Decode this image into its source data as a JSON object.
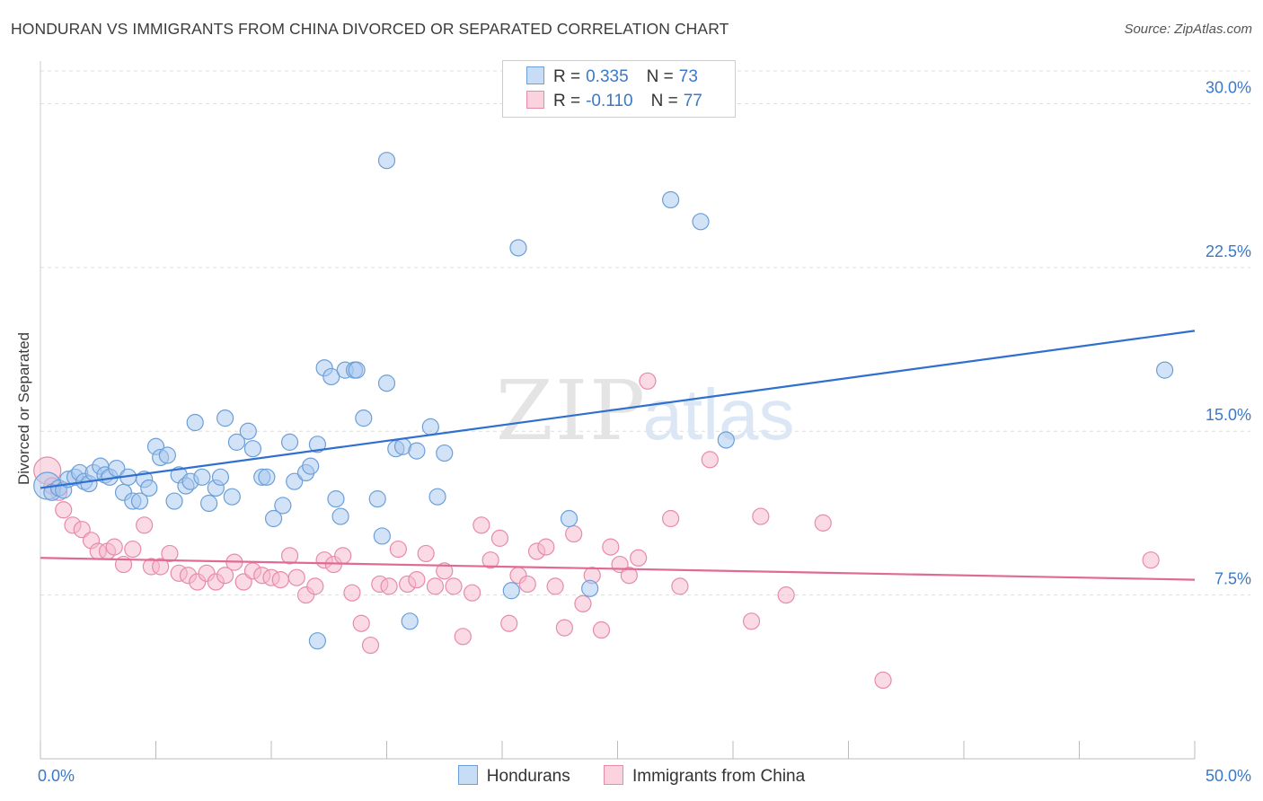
{
  "title": "HONDURAN VS IMMIGRANTS FROM CHINA DIVORCED OR SEPARATED CORRELATION CHART",
  "source": "Source: ZipAtlas.com",
  "watermark": {
    "zip": "ZIP",
    "atlas": "atlas"
  },
  "legend": {
    "r_label": "R =",
    "n_label": "N =",
    "rows": [
      {
        "r": "0.335",
        "n": "73"
      },
      {
        "r": "-0.110",
        "n": "77"
      }
    ]
  },
  "colors": {
    "blue_fill": "#a8c8f0",
    "blue_stroke": "#6a9fd8",
    "blue_line": "#2f6fd0",
    "pink_fill": "#f6b8cc",
    "pink_stroke": "#e88aa8",
    "pink_line": "#e06a95",
    "tick_label": "#3b78c7",
    "grid": "#dddddd"
  },
  "chart_data": {
    "type": "scatter",
    "title": "HONDURAN VS IMMIGRANTS FROM CHINA DIVORCED OR SEPARATED CORRELATION CHART",
    "xlabel": "",
    "ylabel": "Divorced or Separated",
    "xlim": [
      0,
      50
    ],
    "ylim": [
      0,
      31.5
    ],
    "x_tick_labels": [
      "0.0%",
      "50.0%"
    ],
    "y_ticks": [
      7.5,
      15.0,
      22.5,
      30.0
    ],
    "y_tick_labels": [
      "7.5%",
      "15.0%",
      "22.5%",
      "30.0%"
    ],
    "grid": "horizontal dashed",
    "legend_position": "top-center",
    "series": [
      {
        "name": "Hondurans",
        "r": 0.335,
        "n": 73,
        "trend": {
          "x": [
            0,
            50
          ],
          "y": [
            12.4,
            19.6
          ]
        },
        "points": [
          [
            0.3,
            12.5
          ],
          [
            0.5,
            12.2
          ],
          [
            0.8,
            12.4
          ],
          [
            1.0,
            12.3
          ],
          [
            1.2,
            12.8
          ],
          [
            1.5,
            12.9
          ],
          [
            1.7,
            13.1
          ],
          [
            1.9,
            12.7
          ],
          [
            2.1,
            12.6
          ],
          [
            2.3,
            13.1
          ],
          [
            2.6,
            13.4
          ],
          [
            2.8,
            13.0
          ],
          [
            3.0,
            12.9
          ],
          [
            3.3,
            13.3
          ],
          [
            3.6,
            12.2
          ],
          [
            3.8,
            12.9
          ],
          [
            4.0,
            11.8
          ],
          [
            4.3,
            11.8
          ],
          [
            4.5,
            12.8
          ],
          [
            4.7,
            12.4
          ],
          [
            5.0,
            14.3
          ],
          [
            5.2,
            13.8
          ],
          [
            5.5,
            13.9
          ],
          [
            5.8,
            11.8
          ],
          [
            6.0,
            13.0
          ],
          [
            6.3,
            12.5
          ],
          [
            6.5,
            12.7
          ],
          [
            6.7,
            15.4
          ],
          [
            7.0,
            12.9
          ],
          [
            7.3,
            11.7
          ],
          [
            7.6,
            12.4
          ],
          [
            7.8,
            12.9
          ],
          [
            8.0,
            15.6
          ],
          [
            8.3,
            12.0
          ],
          [
            8.5,
            14.5
          ],
          [
            9.0,
            15.0
          ],
          [
            9.2,
            14.2
          ],
          [
            9.6,
            12.9
          ],
          [
            9.8,
            12.9
          ],
          [
            10.1,
            11.0
          ],
          [
            10.5,
            11.6
          ],
          [
            10.8,
            14.5
          ],
          [
            11.0,
            12.7
          ],
          [
            11.5,
            13.1
          ],
          [
            11.7,
            13.4
          ],
          [
            12.0,
            14.4
          ],
          [
            12.3,
            17.9
          ],
          [
            12.6,
            17.5
          ],
          [
            12.8,
            11.9
          ],
          [
            13.0,
            11.1
          ],
          [
            13.2,
            17.8
          ],
          [
            13.6,
            17.8
          ],
          [
            13.7,
            17.8
          ],
          [
            14.0,
            15.6
          ],
          [
            14.6,
            11.9
          ],
          [
            14.8,
            10.2
          ],
          [
            15.0,
            17.2
          ],
          [
            15.4,
            14.2
          ],
          [
            15.7,
            14.3
          ],
          [
            16.0,
            6.3
          ],
          [
            16.3,
            14.1
          ],
          [
            16.9,
            15.2
          ],
          [
            17.2,
            12.0
          ],
          [
            17.5,
            14.0
          ],
          [
            15.0,
            27.4
          ],
          [
            20.4,
            7.7
          ],
          [
            20.7,
            23.4
          ],
          [
            22.9,
            11.0
          ],
          [
            23.8,
            7.8
          ],
          [
            27.3,
            25.6
          ],
          [
            28.6,
            24.6
          ],
          [
            29.7,
            14.6
          ],
          [
            12.0,
            5.4
          ],
          [
            48.7,
            17.8
          ]
        ]
      },
      {
        "name": "Immigrants from China",
        "r": -0.11,
        "n": 77,
        "trend": {
          "x": [
            0,
            50
          ],
          "y": [
            9.2,
            8.2
          ]
        },
        "points": [
          [
            0.3,
            13.2
          ],
          [
            0.5,
            12.5
          ],
          [
            0.8,
            12.2
          ],
          [
            1.0,
            11.4
          ],
          [
            1.4,
            10.7
          ],
          [
            1.8,
            10.5
          ],
          [
            2.2,
            10.0
          ],
          [
            2.5,
            9.5
          ],
          [
            2.9,
            9.5
          ],
          [
            3.2,
            9.7
          ],
          [
            3.6,
            8.9
          ],
          [
            4.0,
            9.6
          ],
          [
            4.5,
            10.7
          ],
          [
            4.8,
            8.8
          ],
          [
            5.2,
            8.8
          ],
          [
            5.6,
            9.4
          ],
          [
            6.0,
            8.5
          ],
          [
            6.4,
            8.4
          ],
          [
            6.8,
            8.1
          ],
          [
            7.2,
            8.5
          ],
          [
            7.6,
            8.1
          ],
          [
            8.0,
            8.4
          ],
          [
            8.4,
            9.0
          ],
          [
            8.8,
            8.1
          ],
          [
            9.2,
            8.6
          ],
          [
            9.6,
            8.4
          ],
          [
            10.0,
            8.3
          ],
          [
            10.4,
            8.2
          ],
          [
            10.8,
            9.3
          ],
          [
            11.1,
            8.3
          ],
          [
            11.5,
            7.5
          ],
          [
            11.9,
            7.9
          ],
          [
            12.3,
            9.1
          ],
          [
            12.7,
            8.9
          ],
          [
            13.1,
            9.3
          ],
          [
            13.5,
            7.6
          ],
          [
            13.9,
            6.2
          ],
          [
            14.3,
            5.2
          ],
          [
            14.7,
            8.0
          ],
          [
            15.1,
            7.9
          ],
          [
            15.5,
            9.6
          ],
          [
            15.9,
            8.0
          ],
          [
            16.3,
            8.2
          ],
          [
            16.7,
            9.4
          ],
          [
            17.1,
            7.9
          ],
          [
            17.5,
            8.6
          ],
          [
            17.9,
            7.9
          ],
          [
            18.3,
            5.6
          ],
          [
            18.7,
            7.6
          ],
          [
            19.1,
            10.7
          ],
          [
            19.5,
            9.1
          ],
          [
            19.9,
            10.1
          ],
          [
            20.3,
            6.2
          ],
          [
            20.7,
            8.4
          ],
          [
            21.1,
            8.0
          ],
          [
            21.5,
            9.5
          ],
          [
            21.9,
            9.7
          ],
          [
            22.3,
            7.9
          ],
          [
            22.7,
            6.0
          ],
          [
            23.1,
            10.3
          ],
          [
            23.5,
            7.1
          ],
          [
            23.9,
            8.4
          ],
          [
            24.3,
            5.9
          ],
          [
            24.7,
            9.7
          ],
          [
            25.1,
            8.9
          ],
          [
            25.5,
            8.4
          ],
          [
            25.9,
            9.2
          ],
          [
            26.3,
            17.3
          ],
          [
            27.3,
            11.0
          ],
          [
            27.7,
            7.9
          ],
          [
            29.0,
            13.7
          ],
          [
            30.8,
            6.3
          ],
          [
            31.2,
            11.1
          ],
          [
            32.3,
            7.5
          ],
          [
            33.9,
            10.8
          ],
          [
            36.5,
            3.6
          ],
          [
            48.1,
            9.1
          ]
        ]
      }
    ]
  },
  "bottom_legend": [
    {
      "label": "Hondurans"
    },
    {
      "label": "Immigrants from China"
    }
  ]
}
